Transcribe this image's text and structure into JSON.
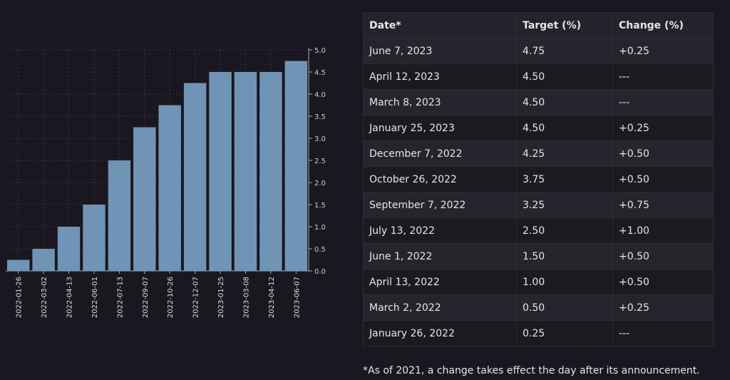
{
  "chart_data": {
    "type": "bar",
    "categories": [
      "2022-01-26",
      "2022-03-02",
      "2022-04-13",
      "2022-06-01",
      "2022-07-13",
      "2022-09-07",
      "2022-10-26",
      "2022-12-07",
      "2023-01-25",
      "2023-03-08",
      "2023-04-12",
      "2023-06-07"
    ],
    "values": [
      0.25,
      0.5,
      1.0,
      1.5,
      2.5,
      3.25,
      3.75,
      4.25,
      4.5,
      4.5,
      4.5,
      4.75
    ],
    "ylim": [
      0,
      5
    ],
    "yticks": [
      "0.0",
      "0.5",
      "1.0",
      "1.5",
      "2.0",
      "2.5",
      "3.0",
      "3.5",
      "4.0",
      "4.5",
      "5.0"
    ],
    "yaxis_position": "right",
    "grid": true,
    "bar_color": "#7094b5"
  },
  "table": {
    "headers": [
      "Date*",
      "Target (%)",
      "Change (%)"
    ],
    "rows": [
      [
        "June 7, 2023",
        "4.75",
        "+0.25"
      ],
      [
        "April 12, 2023",
        "4.50",
        "---"
      ],
      [
        "March 8, 2023",
        "4.50",
        "---"
      ],
      [
        "January 25, 2023",
        "4.50",
        "+0.25"
      ],
      [
        "December 7, 2022",
        "4.25",
        "+0.50"
      ],
      [
        "October 26, 2022",
        "3.75",
        "+0.50"
      ],
      [
        "September 7, 2022",
        "3.25",
        "+0.75"
      ],
      [
        "July 13, 2022",
        "2.50",
        "+1.00"
      ],
      [
        "June 1, 2022",
        "1.50",
        "+0.50"
      ],
      [
        "April 13, 2022",
        "1.00",
        "+0.50"
      ],
      [
        "March 2, 2022",
        "0.50",
        "+0.25"
      ],
      [
        "January 26, 2022",
        "0.25",
        "---"
      ]
    ]
  },
  "note": "*As of 2021, a change takes effect the day after its announcement."
}
